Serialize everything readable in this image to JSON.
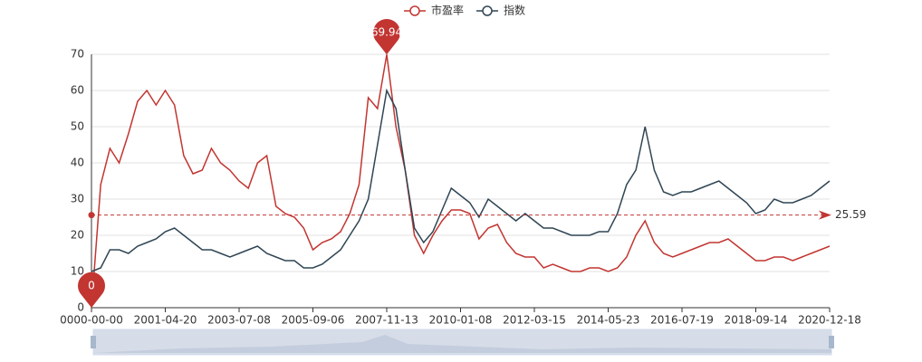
{
  "chart_data": {
    "type": "line",
    "categories": [
      "0000-00-00",
      null,
      null,
      null,
      null,
      null,
      null,
      null,
      "2001-04-20",
      null,
      null,
      null,
      null,
      null,
      null,
      null,
      "2003-07-08",
      null,
      null,
      null,
      null,
      null,
      null,
      null,
      "2005-09-06",
      null,
      null,
      null,
      null,
      null,
      null,
      null,
      "2007-11-13",
      null,
      null,
      null,
      null,
      null,
      null,
      null,
      "2010-01-08",
      null,
      null,
      null,
      null,
      null,
      null,
      null,
      "2012-03-15",
      null,
      null,
      null,
      null,
      null,
      null,
      null,
      "2014-05-23",
      null,
      null,
      null,
      null,
      null,
      null,
      null,
      "2016-07-19",
      null,
      null,
      null,
      null,
      null,
      null,
      null,
      "2018-09-14",
      null,
      null,
      null,
      null,
      null,
      null,
      null,
      "2020-12-18"
    ],
    "series": [
      {
        "name": "市盈率",
        "color": "#c23531",
        "values": [
          0,
          34,
          44,
          40,
          48,
          57,
          60,
          56,
          60,
          56,
          42,
          37,
          38,
          44,
          40,
          38,
          35,
          33,
          40,
          42,
          28,
          26,
          25,
          22,
          16,
          18,
          19,
          21,
          26,
          34,
          58,
          55,
          69.94,
          50,
          38,
          20,
          15,
          20,
          24,
          27,
          27,
          26,
          19,
          22,
          23,
          18,
          15,
          14,
          14,
          11,
          12,
          11,
          10,
          10,
          11,
          11,
          10,
          11,
          14,
          20,
          24,
          18,
          15,
          14,
          15,
          16,
          17,
          18,
          18,
          19,
          17,
          15,
          13,
          13,
          14,
          14,
          13,
          14,
          15,
          16,
          17
        ]
      },
      {
        "name": "指数",
        "color": "#2f4554",
        "values": [
          10,
          11,
          16,
          16,
          15,
          17,
          18,
          19,
          21,
          22,
          20,
          18,
          16,
          16,
          15,
          14,
          15,
          16,
          17,
          15,
          14,
          13,
          13,
          11,
          11,
          12,
          14,
          16,
          20,
          24,
          30,
          45,
          60,
          55,
          38,
          22,
          18,
          21,
          27,
          33,
          31,
          29,
          25,
          30,
          28,
          26,
          24,
          26,
          24,
          22,
          22,
          21,
          20,
          20,
          20,
          21,
          21,
          26,
          34,
          38,
          50,
          38,
          32,
          31,
          32,
          32,
          33,
          34,
          35,
          33,
          31,
          29,
          26,
          27,
          30,
          29,
          29,
          30,
          31,
          33,
          35
        ]
      }
    ],
    "mark_line": {
      "value": 25.59
    },
    "ylim": [
      0,
      70
    ],
    "yticks": [
      0,
      10,
      20,
      30,
      40,
      50,
      60,
      70
    ],
    "grid": true
  }
}
